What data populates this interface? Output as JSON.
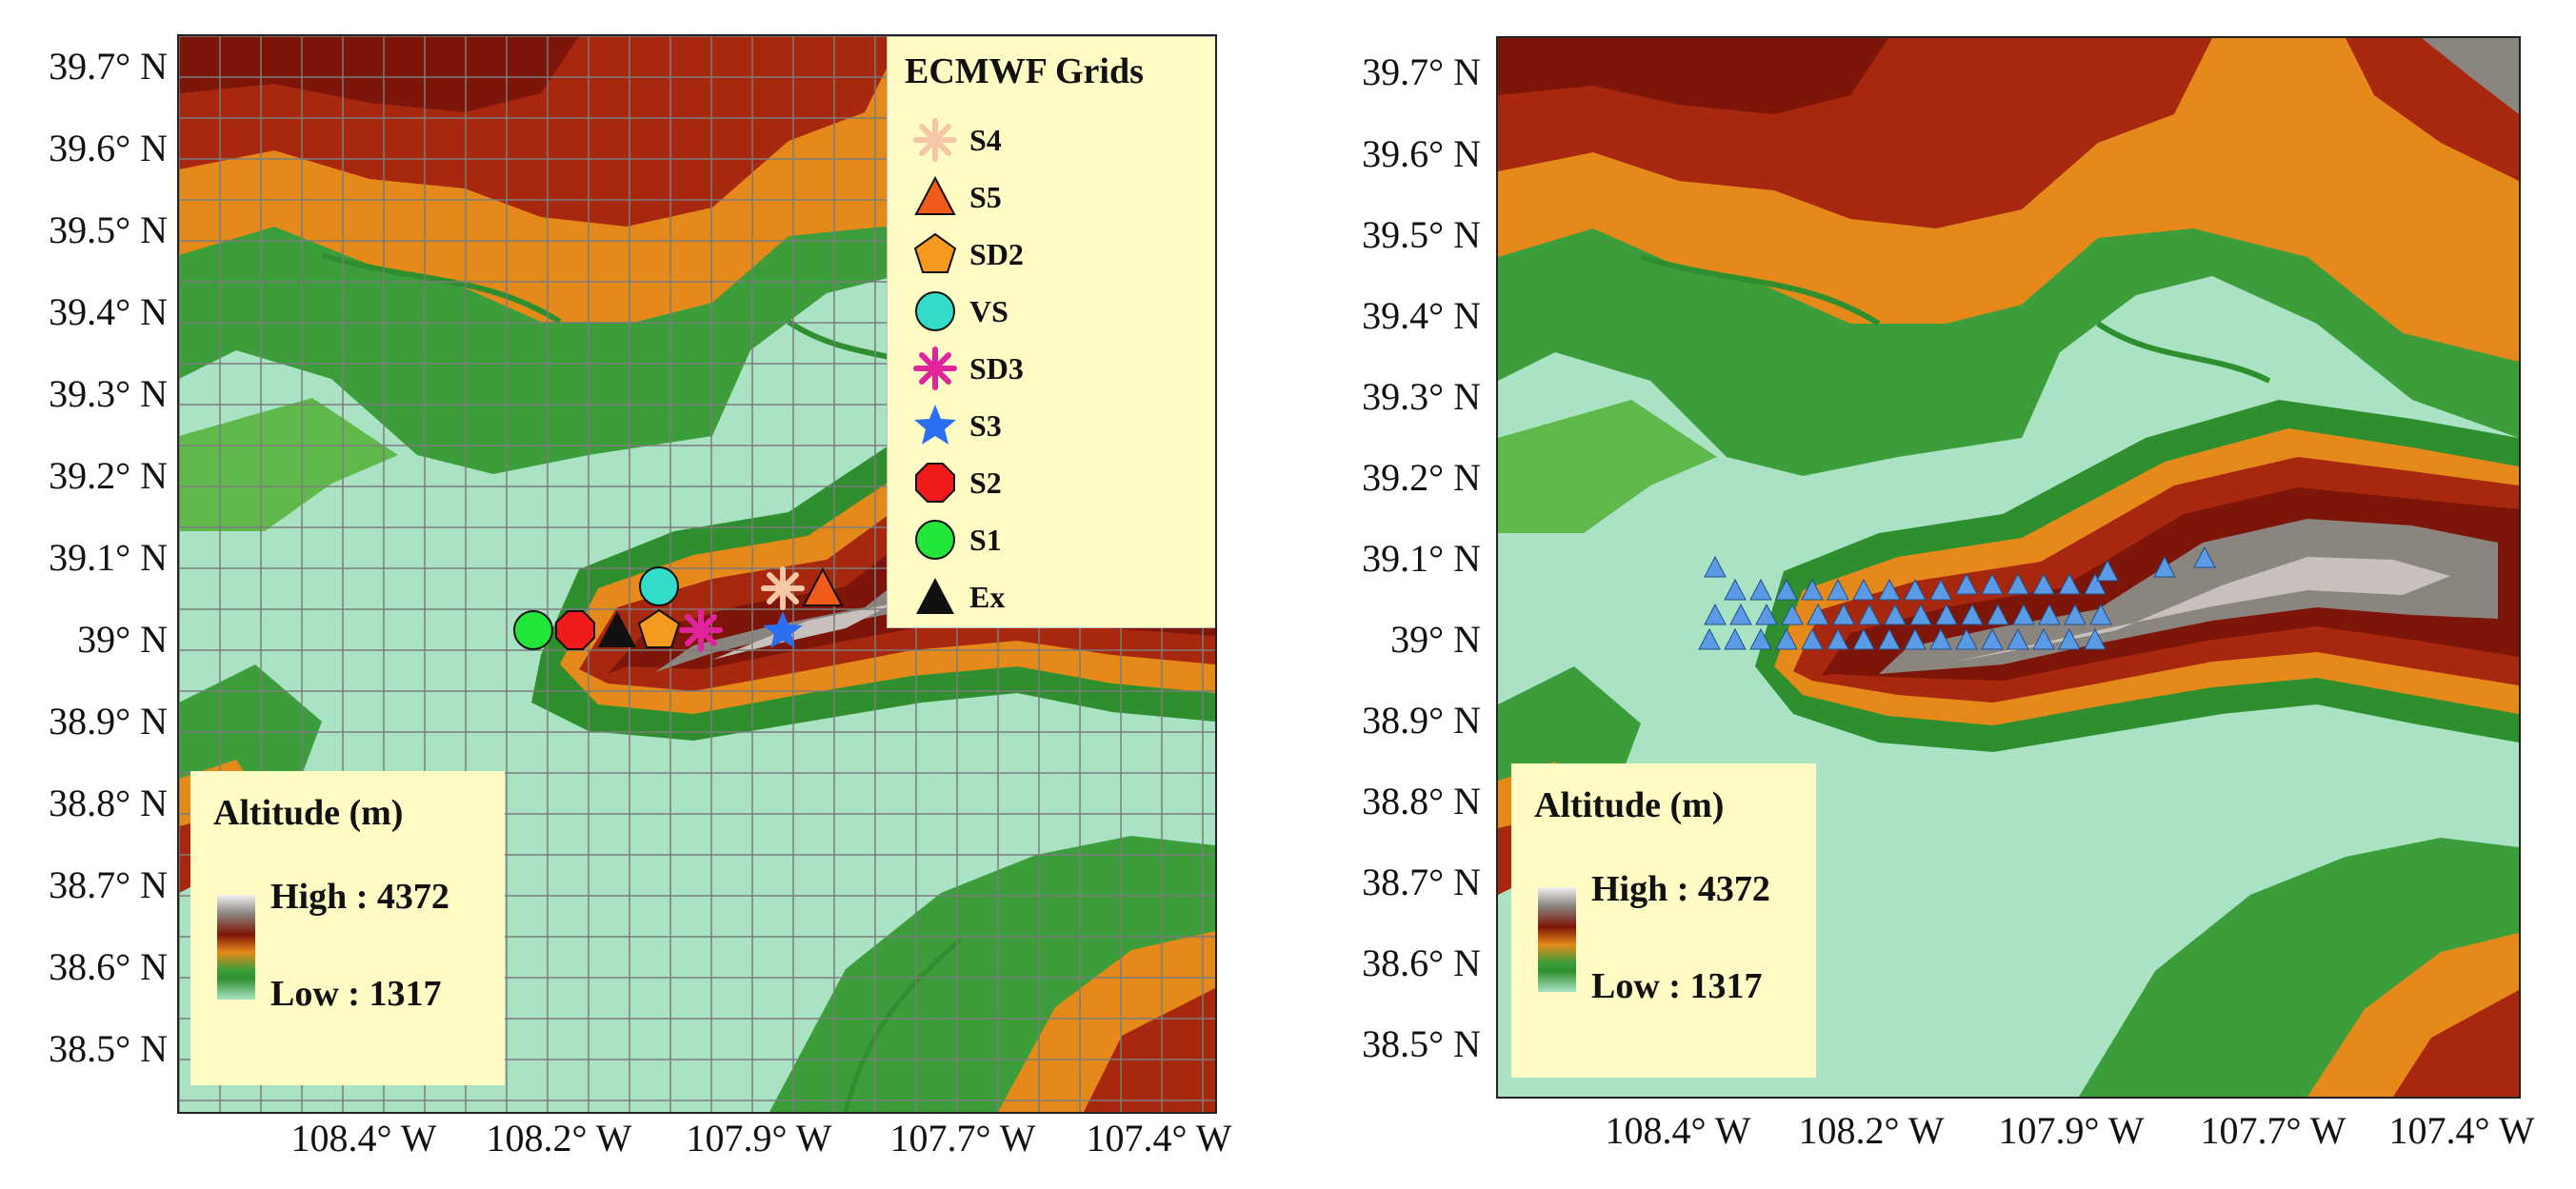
{
  "left_panel": {
    "y_ticks": [
      "39.7° N",
      "39.6° N",
      "39.5° N",
      "39.4° N",
      "39.3° N",
      "39.2° N",
      "39.1° N",
      "39° N",
      "38.9° N",
      "38.8° N",
      "38.7° N",
      "38.6° N",
      "38.5° N"
    ],
    "x_ticks": [
      "108.4° W",
      "108.2° W",
      "107.9° W",
      "107.7° W",
      "107.4° W"
    ],
    "legend": {
      "title": "ECMWF Grids",
      "items": [
        {
          "label": "S4",
          "icon": "asterisk-marker",
          "color": "#f6c7a7"
        },
        {
          "label": "S5",
          "icon": "triangle-marker",
          "color": "#f05a1a"
        },
        {
          "label": "SD2",
          "icon": "pentagon-marker",
          "color": "#f59a1e"
        },
        {
          "label": "VS",
          "icon": "circle-marker",
          "color": "#33dcc9"
        },
        {
          "label": "SD3",
          "icon": "asterisk-marker",
          "color": "#e0249c"
        },
        {
          "label": "S3",
          "icon": "star-marker",
          "color": "#2b6ef0"
        },
        {
          "label": "S2",
          "icon": "octagon-marker",
          "color": "#f01a1a"
        },
        {
          "label": "S1",
          "icon": "circle-marker",
          "color": "#22e63a"
        },
        {
          "label": "Ex",
          "icon": "triangle-marker",
          "color": "#111111"
        }
      ]
    },
    "altitude": {
      "title": "Altitude (m)",
      "high": "High : 4372",
      "low": "Low : 1317"
    }
  },
  "right_panel": {
    "y_ticks": [
      "39.7° N",
      "39.6° N",
      "39.5° N",
      "39.4° N",
      "39.3° N",
      "39.2° N",
      "39.1° N",
      "39° N",
      "38.9° N",
      "38.8° N",
      "38.7° N",
      "38.6° N",
      "38.5° N"
    ],
    "x_ticks": [
      "108.4° W",
      "108.2° W",
      "107.9° W",
      "107.7° W",
      "107.4° W"
    ],
    "station_marker": {
      "icon": "triangle-marker",
      "color": "#5b9be6"
    },
    "altitude": {
      "title": "Altitude (m)",
      "high": "High : 4372",
      "low": "Low : 1317"
    }
  },
  "colors": {
    "mesa_high": "#8a7e78",
    "mesa_red": "#9c1e0c",
    "orange": "#f08a1a",
    "green": "#3ea33a",
    "lowland": "#aee6c8",
    "legend_bg": "#fffbc4"
  }
}
